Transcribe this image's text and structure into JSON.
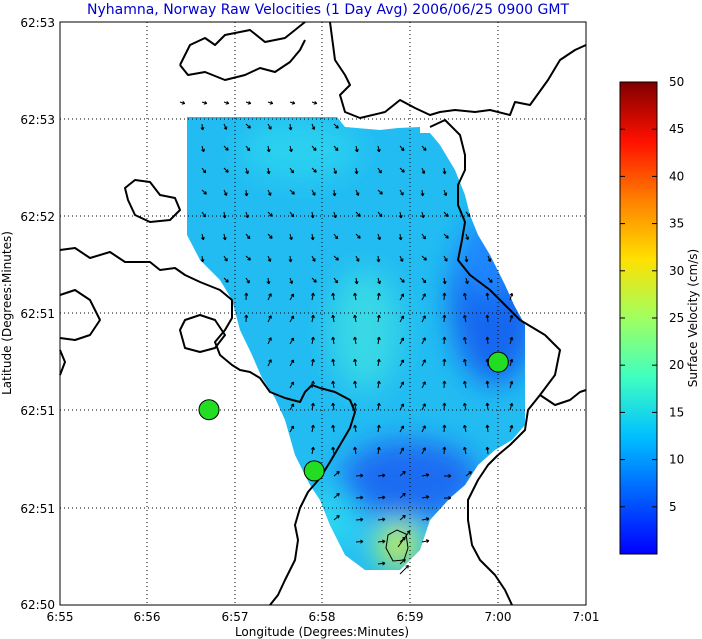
{
  "chart_data": {
    "type": "heatmap",
    "title": "Nyhamna, Norway Raw Velocities (1 Day Avg) 2006/06/25 0900 GMT",
    "xlabel": "Longitude (Degrees:Minutes)",
    "ylabel": "Latitude (Degrees:Minutes)",
    "x_tick_labels": [
      "6:55",
      "6:56",
      "6:57",
      "6:58",
      "6:59",
      "7:00",
      "7:01"
    ],
    "y_tick_labels": [
      "62:53",
      "62:53",
      "62:52",
      "62:51",
      "62:51",
      "62:51",
      "62:50"
    ],
    "colorbar": {
      "label": "Surface Velocity (cm/s)",
      "ticks": [
        5,
        10,
        15,
        20,
        25,
        30,
        35,
        40,
        45,
        50
      ],
      "range": [
        0,
        50
      ],
      "colormap": "jet"
    },
    "grid": true,
    "sites": [
      {
        "lon": 6.945,
        "lat": 62.8476
      },
      {
        "lon": 6.965,
        "lat": 62.8413
      },
      {
        "lon": 7.0,
        "lat": 62.8525
      }
    ],
    "speed_field_cm_s": {
      "typical": 10,
      "slow_regions": [
        {
          "lon": 7.0,
          "lat": 62.848,
          "speed": 4
        },
        {
          "lon": 6.98,
          "lat": 62.8365,
          "speed": 5
        }
      ],
      "fast_regions": [
        {
          "lon": 6.9817,
          "lat": 62.8298,
          "speed": 25
        },
        {
          "lon": 6.97,
          "lat": 62.847,
          "speed": 13
        }
      ]
    }
  },
  "colors": {
    "title": "#0000cc",
    "site_marker": "#22dd22",
    "coastline": "#000000",
    "grid": "#000000"
  }
}
